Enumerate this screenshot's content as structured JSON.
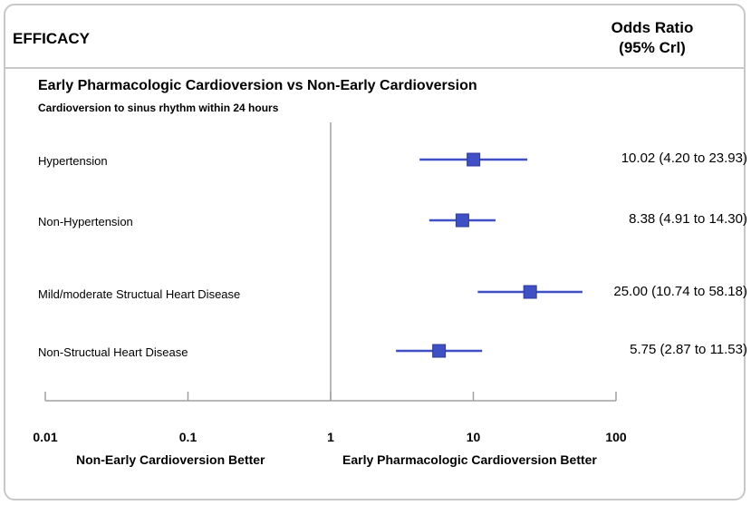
{
  "header": {
    "section_label": "EFFICACY",
    "effect_title_line1": "Odds Ratio",
    "effect_title_line2": "(95% Crl)"
  },
  "comparison": {
    "title": "Early Pharmacologic Cardioversion vs Non-Early Cardioversion",
    "subtitle": "Cardioversion to sinus rhythm within 24 hours"
  },
  "chart_data": {
    "type": "forest",
    "scale": "log",
    "x_ticks": [
      0.01,
      0.1,
      1,
      10,
      100
    ],
    "x_tick_labels": [
      "0.01",
      "0.1",
      "1",
      "10",
      "100"
    ],
    "xlim": [
      0.01,
      100
    ],
    "reference_value": 1,
    "marker_color": "#3f4fc4",
    "rows": [
      {
        "label": "Hypertension",
        "estimate": 10.02,
        "lower": 4.2,
        "upper": 23.93,
        "text": "10.02 (4.20 to 23.93)"
      },
      {
        "label": "Non-Hypertension",
        "estimate": 8.38,
        "lower": 4.91,
        "upper": 14.3,
        "text": "8.38 (4.91 to 14.30)"
      },
      {
        "label": "Mild/moderate Structual Heart Disease",
        "estimate": 25.0,
        "lower": 10.74,
        "upper": 58.18,
        "text": "25.00 (10.74 to 58.18)"
      },
      {
        "label": "Non-Structual Heart Disease",
        "estimate": 5.75,
        "lower": 2.87,
        "upper": 11.53,
        "text": "5.75 (2.87 to 11.53)"
      }
    ],
    "favors_left": "Non-Early Cardioversion Better",
    "favors_right": "Early Pharmacologic Cardioversion Better"
  }
}
